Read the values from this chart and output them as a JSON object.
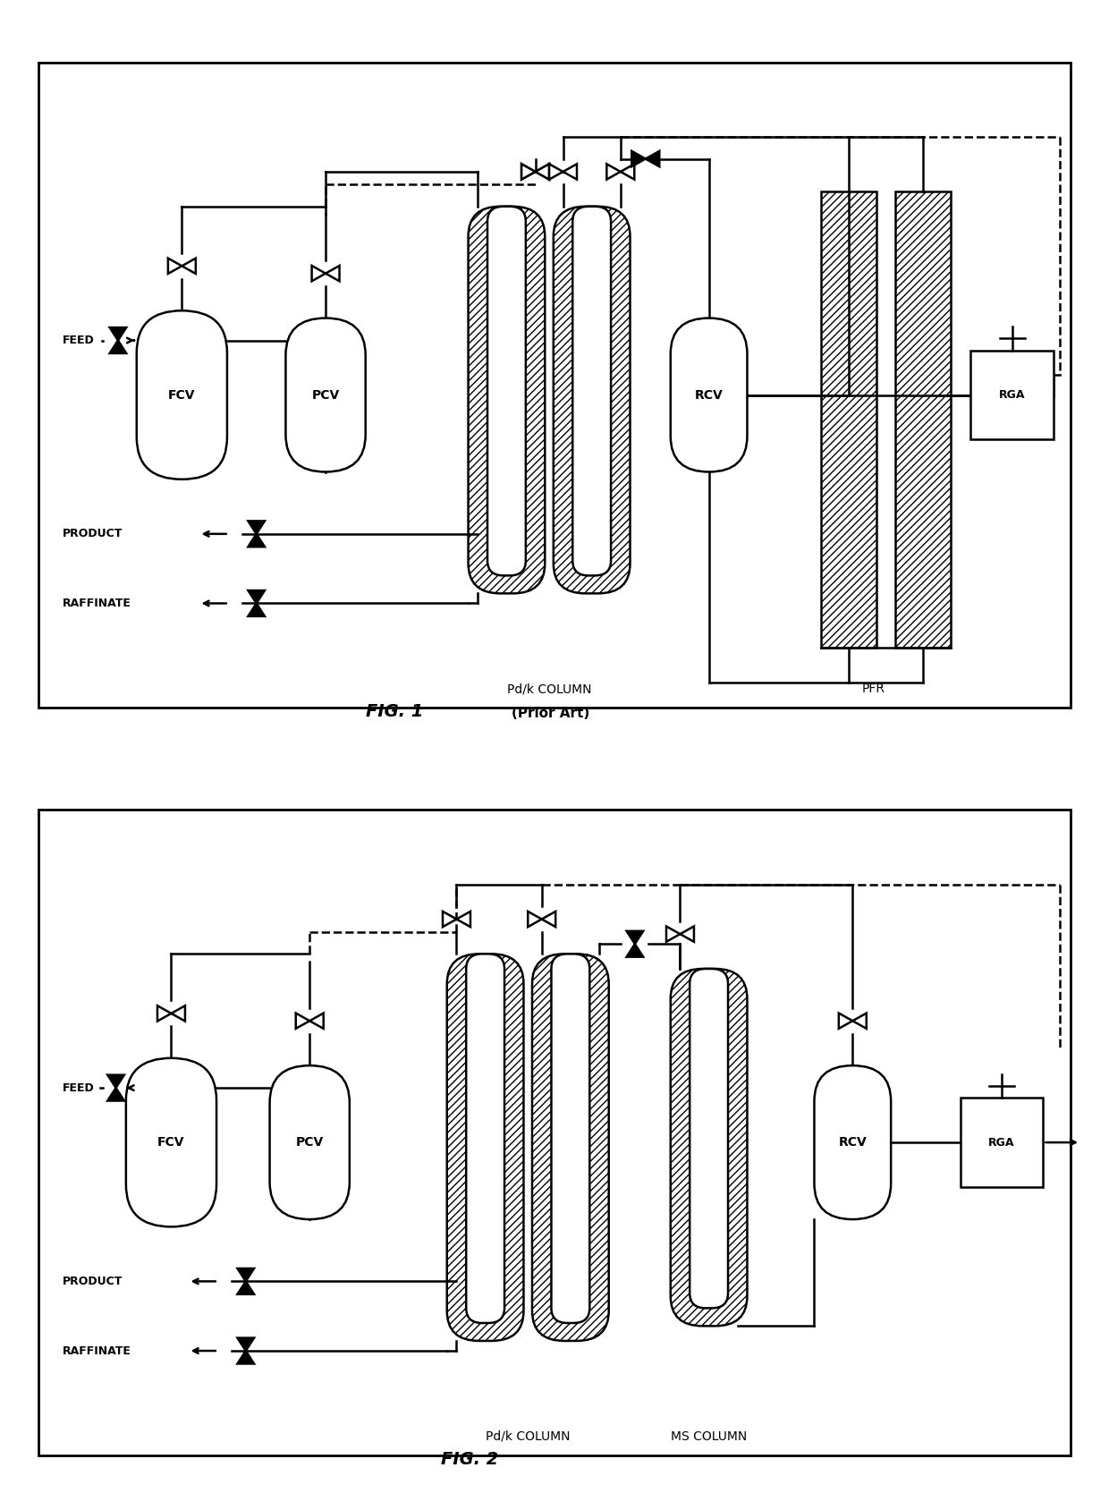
{
  "fig_width": 12.4,
  "fig_height": 16.88,
  "bg_color": "#ffffff",
  "fig1_title": "FIG. 1",
  "fig1_subtitle": "(Prior Art)",
  "fig2_title": "FIG. 2",
  "fig1_labels": {
    "feed": "FEED",
    "product": "PRODUCT",
    "raffinate": "RAFFINATE",
    "fcv": "FCV",
    "pcv": "PCV",
    "rcv": "RCV",
    "rga": "RGA",
    "pdk_col": "Pd/k COLUMN",
    "pfr": "PFR"
  },
  "fig2_labels": {
    "feed": "FEED",
    "product": "PRODUCT",
    "raffinate": "RAFFINATE",
    "fcv": "FCV",
    "pcv": "PCV",
    "rcv": "RCV",
    "rga": "RGA",
    "pdk_col": "Pd/k COLUMN",
    "ms_col": "MS COLUMN"
  }
}
